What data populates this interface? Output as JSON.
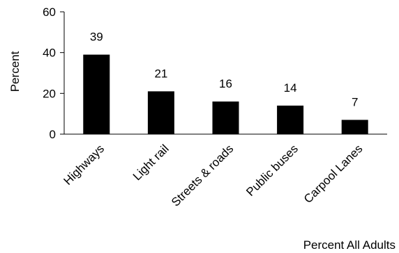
{
  "chart_data": {
    "type": "bar",
    "title": "",
    "ylabel": "Percent",
    "xlabel": "Percent All Adults",
    "ylim": [
      0,
      60
    ],
    "yticks": [
      0,
      20,
      40,
      60
    ],
    "categories": [
      "Highways",
      "Light rail",
      "Streets & roads",
      "Public buses",
      "Carpool Lanes"
    ],
    "values": [
      39,
      21,
      16,
      14,
      7
    ],
    "data_labels": [
      "39",
      "21",
      "16",
      "14",
      "7"
    ],
    "grid": false,
    "legend": "none",
    "colors": {
      "bar": "#000000",
      "axis": "#000000",
      "background": "#ffffff"
    }
  }
}
